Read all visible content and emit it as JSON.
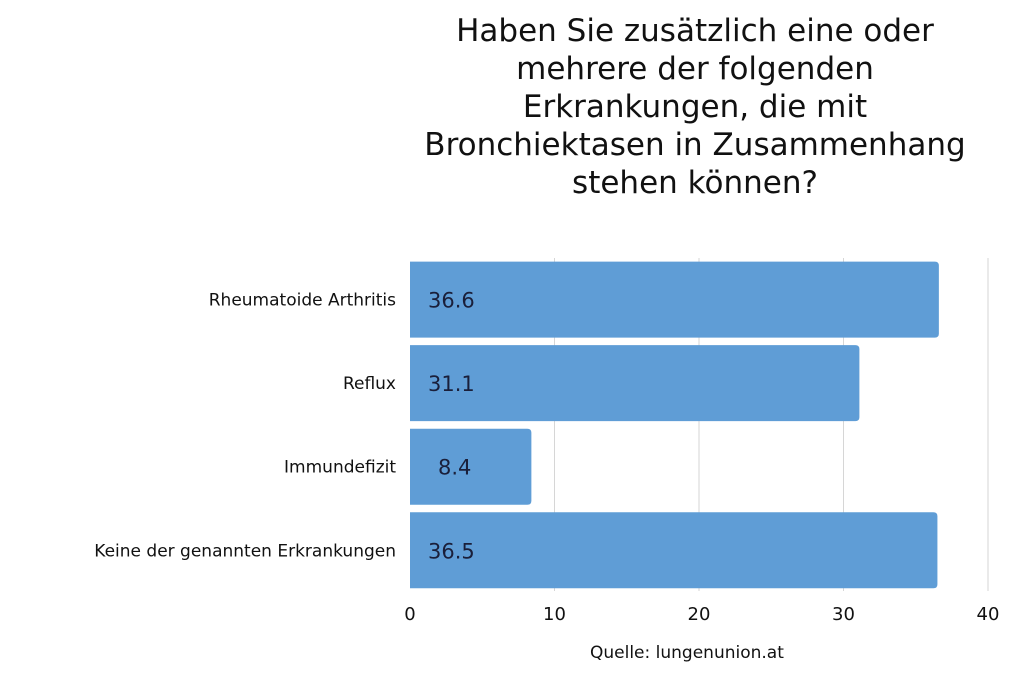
{
  "chart_data": {
    "type": "bar",
    "orientation": "horizontal",
    "title": "Haben Sie zusätzlich eine oder mehrere der folgenden Erkrankungen, die mit Bronchiektasen in Zusammenhang stehen können?",
    "categories": [
      "Rheumatoide Arthritis",
      "Reflux",
      "Immundefizit",
      "Keine der genannten Erkrankungen"
    ],
    "values": [
      36.6,
      31.1,
      8.4,
      36.5
    ],
    "value_labels": [
      "36.6",
      "31.1",
      "8.4",
      "36.5"
    ],
    "xlim": [
      0,
      40
    ],
    "xticks": [
      0,
      10,
      20,
      30,
      40
    ],
    "xlabel": "",
    "ylabel": "",
    "grid": true,
    "bar_color": "#5f9dd6",
    "label_color": "#1a1f3a"
  },
  "source": "Quelle: lungenunion.at"
}
